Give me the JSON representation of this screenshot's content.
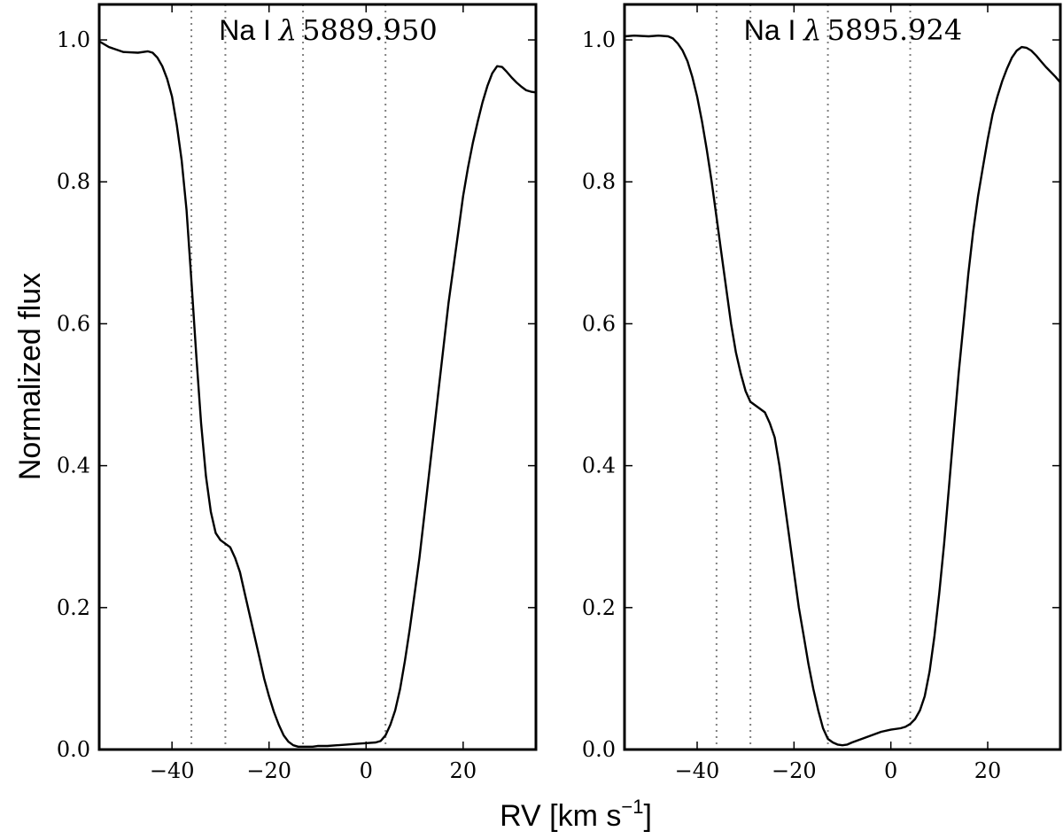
{
  "chart_data": {
    "type": "line",
    "xlabel_main": "RV [km s",
    "xlabel_sup": "−1",
    "xlabel_close": "]",
    "ylabel": "Normalized flux",
    "xlim": [
      -55,
      35
    ],
    "ylim": [
      0.0,
      1.05
    ],
    "xticks": [
      -40,
      -20,
      0,
      20
    ],
    "xtick_labels": [
      "−40",
      "−20",
      "0",
      "20"
    ],
    "yticks": [
      0.0,
      0.2,
      0.4,
      0.6,
      0.8,
      1.0
    ],
    "ytick_labels": [
      "0.0",
      "0.2",
      "0.4",
      "0.6",
      "0.8",
      "1.0"
    ],
    "grid": false,
    "reference_lines_x": [
      -36,
      -29,
      -13,
      4
    ],
    "panels": [
      {
        "title_prefix": "Na I ",
        "title_lambda": "λ",
        "title_wavelength": "5889.950",
        "series": [
          {
            "x": [
              -55,
              -53,
              -50,
              -47,
              -45,
              -44,
              -43,
              -42,
              -41,
              -40,
              -39,
              -38,
              -37,
              -36,
              -35,
              -34,
              -33,
              -32,
              -31,
              -30,
              -29,
              -28,
              -27,
              -26,
              -25,
              -24,
              -23,
              -22,
              -21,
              -20,
              -19,
              -18,
              -17,
              -16,
              -15,
              -14,
              -13,
              -12,
              -11,
              -10,
              -8,
              -6,
              -4,
              -2,
              0,
              2,
              3,
              4,
              5,
              6,
              7,
              8,
              9,
              10,
              11,
              12,
              13,
              14,
              15,
              16,
              17,
              18,
              19,
              20,
              21,
              22,
              23,
              24,
              25,
              26,
              27,
              28,
              29,
              30,
              31,
              32,
              33,
              34,
              35
            ],
            "y": [
              0.998,
              0.99,
              0.983,
              0.982,
              0.984,
              0.982,
              0.975,
              0.963,
              0.945,
              0.92,
              0.88,
              0.83,
              0.76,
              0.66,
              0.555,
              0.46,
              0.385,
              0.335,
              0.305,
              0.295,
              0.29,
              0.285,
              0.27,
              0.25,
              0.22,
              0.19,
              0.16,
              0.13,
              0.1,
              0.075,
              0.053,
              0.035,
              0.02,
              0.011,
              0.006,
              0.004,
              0.004,
              0.004,
              0.004,
              0.005,
              0.005,
              0.006,
              0.007,
              0.008,
              0.009,
              0.01,
              0.012,
              0.02,
              0.035,
              0.055,
              0.085,
              0.125,
              0.17,
              0.22,
              0.27,
              0.33,
              0.39,
              0.45,
              0.51,
              0.57,
              0.63,
              0.68,
              0.73,
              0.78,
              0.82,
              0.855,
              0.885,
              0.912,
              0.935,
              0.953,
              0.963,
              0.962,
              0.955,
              0.947,
              0.94,
              0.934,
              0.929,
              0.927,
              0.926
            ]
          }
        ]
      },
      {
        "title_prefix": "Na I ",
        "title_lambda": "λ",
        "title_wavelength": "5895.924",
        "series": [
          {
            "x": [
              -55,
              -53,
              -50,
              -48,
              -46,
              -45,
              -44,
              -43,
              -42,
              -41,
              -40,
              -39,
              -38,
              -37,
              -36,
              -35,
              -34,
              -33,
              -32,
              -31,
              -30,
              -29,
              -28,
              -27,
              -26,
              -25,
              -24,
              -23,
              -22,
              -21,
              -20,
              -19,
              -18,
              -17,
              -16,
              -15,
              -14,
              -13,
              -12,
              -11,
              -10,
              -9,
              -8,
              -6,
              -4,
              -2,
              0,
              2,
              3,
              4,
              5,
              6,
              7,
              8,
              9,
              10,
              11,
              12,
              13,
              14,
              15,
              16,
              17,
              18,
              19,
              20,
              21,
              22,
              23,
              24,
              25,
              26,
              27,
              28,
              29,
              30,
              31,
              32,
              33,
              34,
              35
            ],
            "y": [
              1.005,
              1.006,
              1.005,
              1.006,
              1.005,
              1.002,
              0.995,
              0.985,
              0.97,
              0.948,
              0.92,
              0.885,
              0.845,
              0.8,
              0.75,
              0.7,
              0.65,
              0.6,
              0.56,
              0.53,
              0.505,
              0.49,
              0.485,
              0.48,
              0.475,
              0.46,
              0.44,
              0.4,
              0.35,
              0.3,
              0.25,
              0.2,
              0.16,
              0.12,
              0.085,
              0.055,
              0.03,
              0.015,
              0.01,
              0.007,
              0.006,
              0.007,
              0.01,
              0.015,
              0.02,
              0.025,
              0.028,
              0.03,
              0.032,
              0.036,
              0.043,
              0.055,
              0.075,
              0.11,
              0.16,
              0.22,
              0.29,
              0.37,
              0.45,
              0.53,
              0.6,
              0.67,
              0.73,
              0.78,
              0.82,
              0.86,
              0.895,
              0.92,
              0.942,
              0.96,
              0.975,
              0.985,
              0.99,
              0.989,
              0.985,
              0.978,
              0.97,
              0.962,
              0.955,
              0.948,
              0.94
            ]
          }
        ]
      }
    ]
  }
}
